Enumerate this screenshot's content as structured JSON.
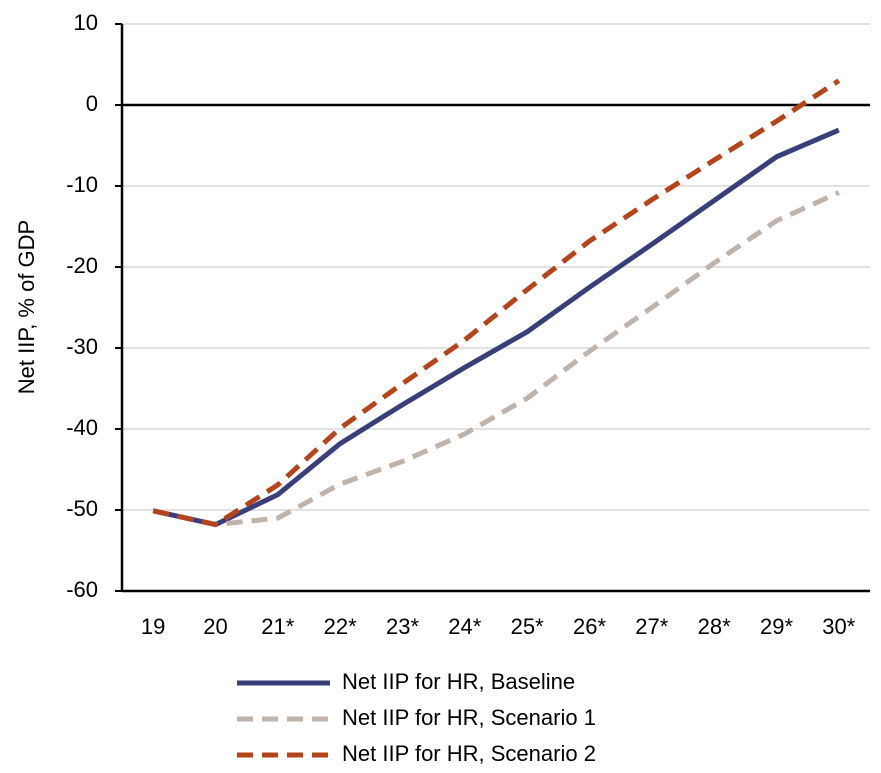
{
  "chart_data": {
    "type": "line",
    "y_label": "Net IIP,  % of GDP",
    "categories": [
      "19",
      "20",
      "21*",
      "22*",
      "23*",
      "24*",
      "25*",
      "26*",
      "27*",
      "28*",
      "29*",
      "30*"
    ],
    "series": [
      {
        "name": "Net IIP for HR, Baseline",
        "color": "#393f7a",
        "dashed": false,
        "values": [
          -50.1,
          -51.8,
          -48.1,
          -41.8,
          -37,
          -32.4,
          -28,
          -22.5,
          -17.2,
          -11.8,
          -6.4,
          -3.1
        ]
      },
      {
        "name": "Net IIP for HR, Scenario 1",
        "color": "#bfb3aa",
        "dashed": true,
        "values": [
          -50.1,
          -51.8,
          -51,
          -46.8,
          -44,
          -40.6,
          -36.2,
          -30.4,
          -25,
          -19.5,
          -14.3,
          -10.8
        ]
      },
      {
        "name": "Net IIP for HR, Scenario 2",
        "color": "#b5441a",
        "dashed": true,
        "values": [
          -50.1,
          -51.8,
          -46.9,
          -39.9,
          -34.4,
          -29,
          -22.8,
          -16.8,
          -11.7,
          -6.8,
          -2,
          3
        ]
      }
    ],
    "ylim": [
      -60,
      10
    ],
    "yticks": [
      -60,
      -50,
      -40,
      -30,
      -20,
      -10,
      0,
      10
    ],
    "grid": true
  }
}
